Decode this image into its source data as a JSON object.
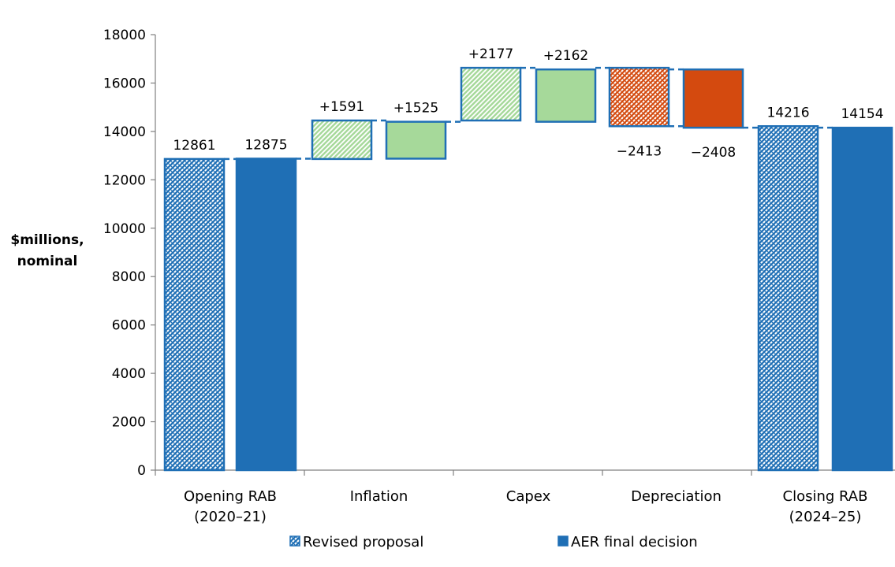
{
  "chart_data": {
    "type": "bar",
    "subtype": "waterfall",
    "ylabel_lines": [
      "$millions,",
      "nominal"
    ],
    "ylim": [
      0,
      18000
    ],
    "yticks": [
      0,
      2000,
      4000,
      6000,
      8000,
      10000,
      12000,
      14000,
      16000,
      18000
    ],
    "categories": [
      {
        "lines": [
          "Opening RAB",
          "(2020–21)"
        ]
      },
      {
        "lines": [
          "Inflation"
        ]
      },
      {
        "lines": [
          "Capex"
        ]
      },
      {
        "lines": [
          "Depreciation"
        ]
      },
      {
        "lines": [
          "Closing RAB",
          "(2024–25)"
        ]
      }
    ],
    "series": [
      {
        "name": "Revised proposal",
        "pattern": "hatched",
        "bars": [
          {
            "base": 0,
            "top": 12861,
            "label": "12861",
            "color": "#1f6fb5"
          },
          {
            "base": 12861,
            "top": 14452,
            "label": "+1591",
            "color": "#a6d99a"
          },
          {
            "base": 14452,
            "top": 16629,
            "label": "+2177",
            "color": "#a6d99a"
          },
          {
            "base": 14216,
            "top": 16629,
            "label": "−2413",
            "color": "#d44a0f"
          },
          {
            "base": 0,
            "top": 14216,
            "label": "14216",
            "color": "#1f6fb5"
          }
        ]
      },
      {
        "name": "AER final decision",
        "pattern": "solid",
        "bars": [
          {
            "base": 0,
            "top": 12875,
            "label": "12875",
            "color": "#1f6fb5"
          },
          {
            "base": 12875,
            "top": 14400,
            "label": "+1525",
            "color": "#a6d99a"
          },
          {
            "base": 14400,
            "top": 16562,
            "label": "+2162",
            "color": "#a6d99a"
          },
          {
            "base": 14154,
            "top": 16562,
            "label": "−2408",
            "color": "#d44a0f"
          },
          {
            "base": 0,
            "top": 14154,
            "label": "14154",
            "color": "#1f6fb5"
          }
        ]
      }
    ],
    "label_position": [
      "top",
      "top",
      "top",
      "bottom",
      "top"
    ],
    "connector_color": "#1f6fb5",
    "legend_position": "bottom"
  }
}
